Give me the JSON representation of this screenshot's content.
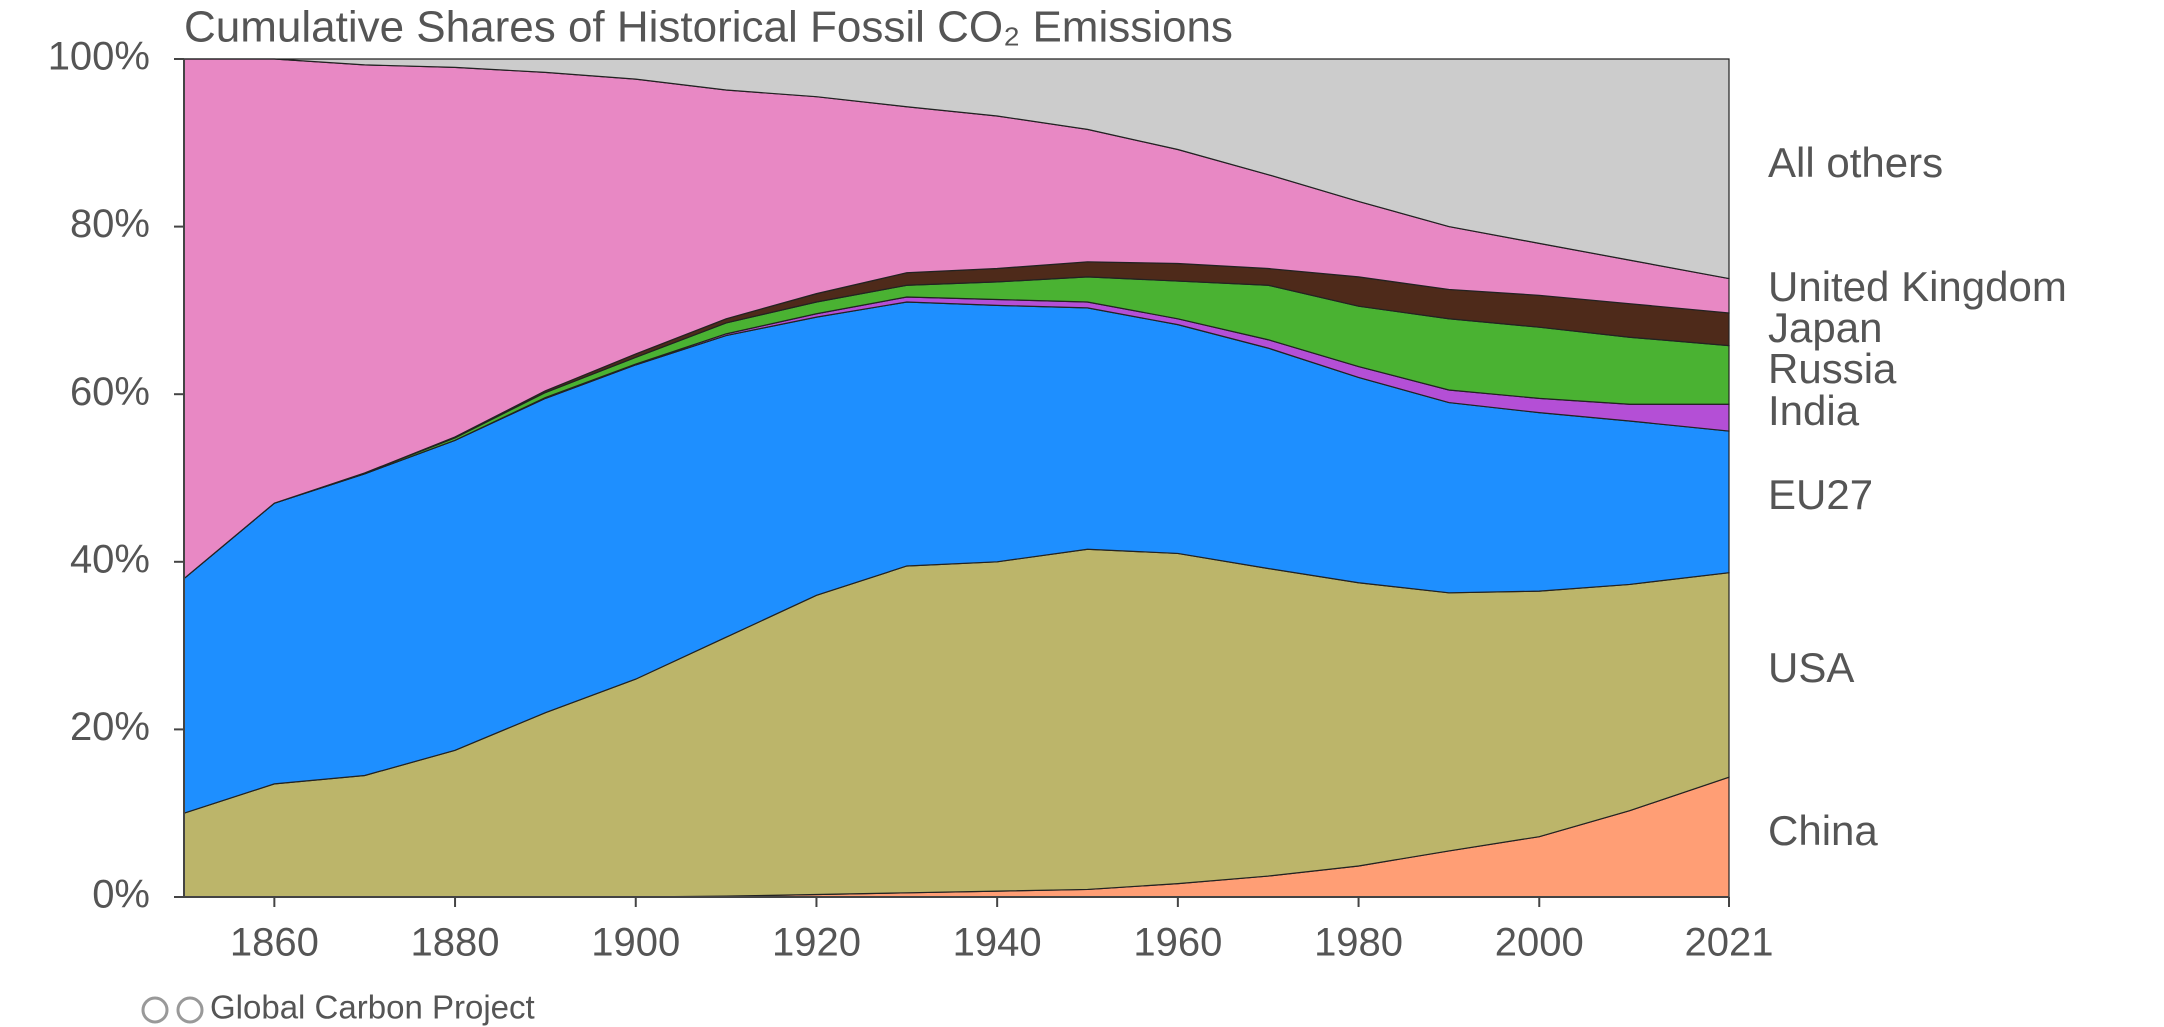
{
  "chart_data": {
    "type": "stacked_area",
    "title": "Cumulative Shares of Historical Fossil CO₂ Emissions",
    "source": "Global Carbon Project",
    "x": [
      1850,
      1860,
      1870,
      1880,
      1890,
      1900,
      1910,
      1920,
      1930,
      1940,
      1950,
      1960,
      1970,
      1980,
      1990,
      2000,
      2010,
      2021
    ],
    "xlim": [
      1850,
      2021
    ],
    "xticks": [
      1860,
      1880,
      1900,
      1920,
      1940,
      1960,
      1980,
      2000,
      2021
    ],
    "ylim": [
      0,
      100
    ],
    "yticks": [
      {
        "value": 0,
        "label": "0%"
      },
      {
        "value": 20,
        "label": "20%"
      },
      {
        "value": 40,
        "label": "40%"
      },
      {
        "value": 60,
        "label": "60%"
      },
      {
        "value": 80,
        "label": "80%"
      },
      {
        "value": 100,
        "label": "100%"
      }
    ],
    "series": [
      {
        "name": "China",
        "color": "#ff9e75",
        "values": [
          0,
          0,
          0,
          0,
          0,
          0,
          0.1,
          0.3,
          0.5,
          0.7,
          0.9,
          1.6,
          2.5,
          3.7,
          5.5,
          7.2,
          10.3,
          14.3
        ]
      },
      {
        "name": "USA",
        "color": "#bcb56a",
        "values": [
          10,
          13.5,
          14.5,
          17.5,
          22,
          26,
          30.9,
          35.7,
          39,
          39.3,
          40.6,
          39.4,
          36.7,
          33.8,
          30.8,
          29.3,
          27,
          24.4
        ]
      },
      {
        "name": "EU27",
        "color": "#1e8fff",
        "values": [
          28,
          33.5,
          36,
          37,
          37.5,
          37.5,
          36,
          33.2,
          31.5,
          30.6,
          28.8,
          27.3,
          26.3,
          24.5,
          22.7,
          21.3,
          19.5,
          16.9
        ]
      },
      {
        "name": "India",
        "color": "#b44fd6",
        "values": [
          0,
          0,
          0,
          0,
          0.1,
          0.1,
          0.2,
          0.4,
          0.6,
          0.7,
          0.7,
          0.7,
          1,
          1.3,
          1.5,
          1.7,
          2,
          3.2
        ]
      },
      {
        "name": "Russia",
        "color": "#4ab232",
        "values": [
          0,
          0,
          0.1,
          0.3,
          0.6,
          0.8,
          1.3,
          1.4,
          1.4,
          2.1,
          3,
          4.5,
          6.5,
          7.2,
          8.5,
          8.5,
          8,
          7
        ]
      },
      {
        "name": "Japan",
        "color": "#4e2a1a",
        "values": [
          0,
          0,
          0,
          0.1,
          0.2,
          0.4,
          0.5,
          1,
          1.5,
          1.6,
          1.8,
          2.1,
          2,
          3.5,
          3.5,
          3.8,
          4,
          3.9
        ]
      },
      {
        "name": "United Kingdom",
        "color": "#e888c4",
        "values": [
          62,
          53,
          48.7,
          44.1,
          38,
          32.8,
          27.3,
          23.5,
          19.8,
          18.2,
          15.8,
          13.6,
          11.2,
          9,
          7.5,
          6.2,
          5.2,
          4.1
        ]
      },
      {
        "name": "All others",
        "color": "#cccccc",
        "values": [
          0,
          0,
          0.7,
          1,
          1.6,
          2.4,
          3.7,
          4.5,
          5.7,
          6.8,
          8.4,
          10.8,
          13.8,
          17,
          20,
          22,
          24,
          26.2
        ]
      }
    ]
  }
}
